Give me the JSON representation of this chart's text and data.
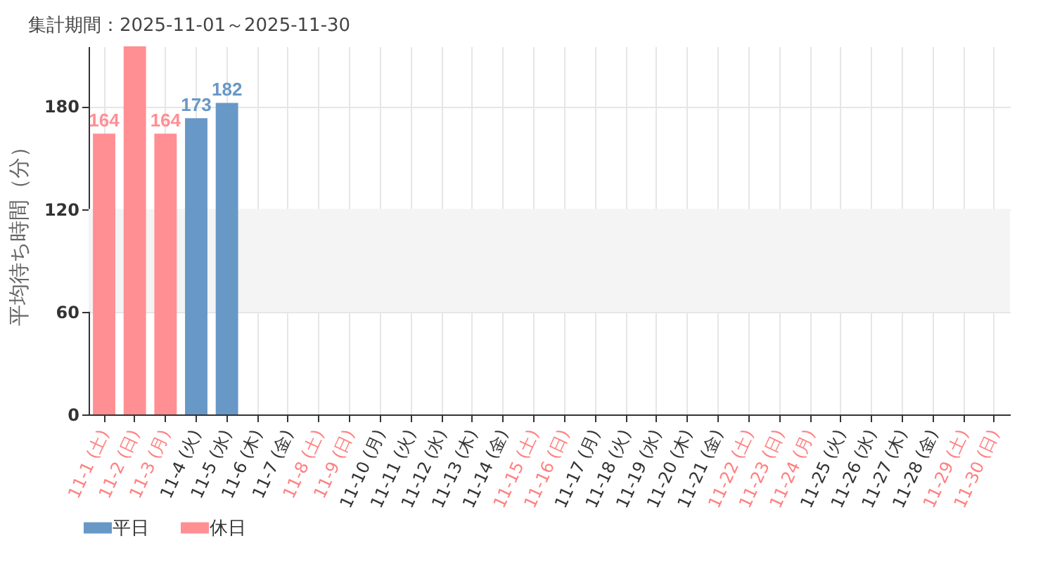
{
  "chart_data": {
    "type": "bar",
    "title": "集計期間：2025-11-01～2025-11-30",
    "ylabel": "平均待ち時間（分）",
    "categories": [
      "11-1 (土)",
      "11-2 (日)",
      "11-3 (月)",
      "11-4 (火)",
      "11-5 (水)",
      "11-6 (木)",
      "11-7 (金)",
      "11-8 (土)",
      "11-9 (日)",
      "11-10 (月)",
      "11-11 (火)",
      "11-12 (水)",
      "11-13 (木)",
      "11-14 (金)",
      "11-15 (土)",
      "11-16 (日)",
      "11-17 (月)",
      "11-18 (火)",
      "11-19 (水)",
      "11-20 (木)",
      "11-21 (金)",
      "11-22 (土)",
      "11-23 (日)",
      "11-24 (月)",
      "11-25 (火)",
      "11-26 (水)",
      "11-27 (木)",
      "11-28 (金)",
      "11-29 (土)",
      "11-30 (日)"
    ],
    "colors": [
      "#ff8080",
      "#ff8080",
      "#ff8080",
      "#333333",
      "#333333",
      "#333333",
      "#333333",
      "#ff8080",
      "#ff8080",
      "#333333",
      "#333333",
      "#333333",
      "#333333",
      "#333333",
      "#ff8080",
      "#ff8080",
      "#333333",
      "#333333",
      "#333333",
      "#333333",
      "#333333",
      "#ff8080",
      "#ff8080",
      "#ff8080",
      "#333333",
      "#333333",
      "#333333",
      "#333333",
      "#ff8080",
      "#ff8080"
    ],
    "series": [
      {
        "name": "平日",
        "color": "#6898c6",
        "values": [
          null,
          null,
          null,
          173,
          182,
          null,
          null,
          null,
          null,
          null,
          null,
          null,
          null,
          null,
          null,
          null,
          null,
          null,
          null,
          null,
          null,
          null,
          null,
          null,
          null,
          null,
          null,
          null,
          null,
          null
        ],
        "value_labels": [
          null,
          null,
          null,
          "173",
          "182",
          null,
          null,
          null,
          null,
          null,
          null,
          null,
          null,
          null,
          null,
          null,
          null,
          null,
          null,
          null,
          null,
          null,
          null,
          null,
          null,
          null,
          null,
          null,
          null,
          null
        ]
      },
      {
        "name": "休日",
        "color": "#ff8f93",
        "values": [
          164,
          215,
          164,
          null,
          null,
          null,
          null,
          null,
          null,
          null,
          null,
          null,
          null,
          null,
          null,
          null,
          null,
          null,
          null,
          null,
          null,
          null,
          null,
          null,
          null,
          null,
          null,
          null,
          null,
          null
        ],
        "value_labels": [
          "164",
          null,
          "164",
          null,
          null,
          null,
          null,
          null,
          null,
          null,
          null,
          null,
          null,
          null,
          null,
          null,
          null,
          null,
          null,
          null,
          null,
          null,
          null,
          null,
          null,
          null,
          null,
          null,
          null,
          null
        ]
      }
    ],
    "ylim": [
      0,
      215
    ],
    "yticks": [
      0,
      60,
      120,
      180
    ],
    "grid": true,
    "legend": "bottom left",
    "bands": [
      {
        "axis": "y",
        "from": 60,
        "to": 120,
        "color": "#f4f4f4"
      }
    ]
  }
}
